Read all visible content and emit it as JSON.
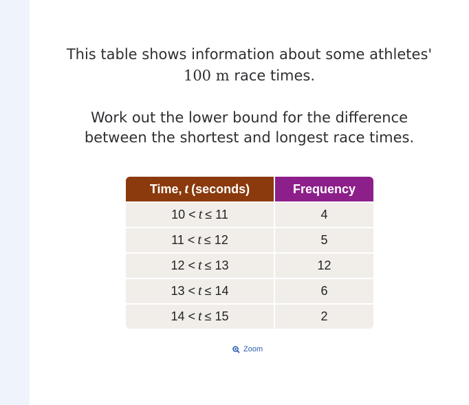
{
  "question": {
    "line1": "This table shows information about some athletes'",
    "quantity": "100 m",
    "line2_end": "race times.",
    "task_lines": [
      "Work out the lower bound for the difference",
      "between the shortest and longest race times."
    ]
  },
  "table": {
    "header": {
      "time": [
        "Time,",
        "t",
        "(seconds)"
      ],
      "frequency": "Frequency"
    },
    "rows": [
      {
        "interval": [
          "10 <",
          "t",
          "≤ 11"
        ],
        "frequency": "4"
      },
      {
        "interval": [
          "11 <",
          "t",
          "≤ 12"
        ],
        "frequency": "5"
      },
      {
        "interval": [
          "12 <",
          "t",
          "≤ 13"
        ],
        "frequency": "12"
      },
      {
        "interval": [
          "13 <",
          "t",
          "≤ 14"
        ],
        "frequency": "6"
      },
      {
        "interval": [
          "14 <",
          "t",
          "≤ 15"
        ],
        "frequency": "2"
      }
    ]
  },
  "zoom": "Zoom"
}
